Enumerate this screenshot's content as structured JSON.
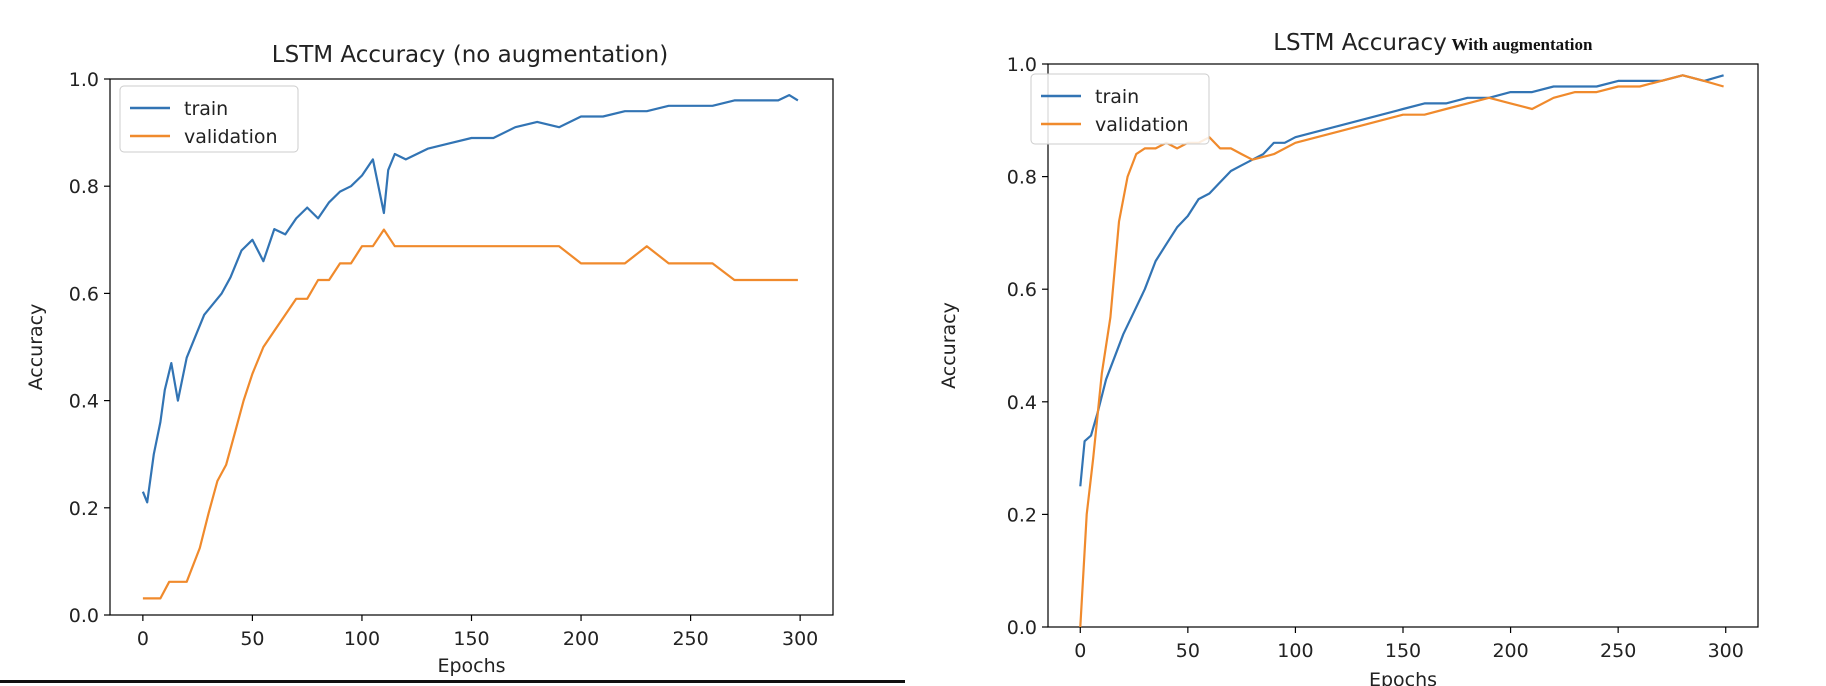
{
  "chart_data": [
    {
      "type": "line",
      "title": "LSTM Accuracy (no augmentation)",
      "xlabel": "Epochs",
      "ylabel": "Accuracy",
      "xlim": [
        -15,
        315
      ],
      "ylim": [
        0.0,
        1.0
      ],
      "xticks": [
        0,
        50,
        100,
        150,
        200,
        250,
        300
      ],
      "yticks": [
        0.0,
        0.2,
        0.4,
        0.6,
        0.8,
        1.0
      ],
      "grid": false,
      "legend_position": "upper-left",
      "series": [
        {
          "name": "train",
          "color": "#3274b4",
          "x": [
            0,
            2,
            5,
            8,
            10,
            13,
            16,
            20,
            24,
            28,
            32,
            36,
            40,
            45,
            50,
            55,
            60,
            65,
            70,
            75,
            80,
            85,
            90,
            95,
            100,
            105,
            110,
            112,
            115,
            120,
            130,
            140,
            150,
            160,
            170,
            180,
            190,
            200,
            210,
            220,
            230,
            240,
            250,
            260,
            270,
            280,
            290,
            295,
            299
          ],
          "y": [
            0.23,
            0.21,
            0.3,
            0.36,
            0.42,
            0.47,
            0.4,
            0.48,
            0.52,
            0.56,
            0.58,
            0.6,
            0.63,
            0.68,
            0.7,
            0.66,
            0.72,
            0.71,
            0.74,
            0.76,
            0.74,
            0.77,
            0.79,
            0.8,
            0.82,
            0.85,
            0.75,
            0.83,
            0.86,
            0.85,
            0.87,
            0.88,
            0.89,
            0.89,
            0.91,
            0.92,
            0.91,
            0.93,
            0.93,
            0.94,
            0.94,
            0.95,
            0.95,
            0.95,
            0.96,
            0.96,
            0.96,
            0.97,
            0.96
          ]
        },
        {
          "name": "validation",
          "color": "#f08a2c",
          "x": [
            0,
            8,
            12,
            20,
            26,
            30,
            34,
            38,
            42,
            46,
            50,
            55,
            60,
            65,
            70,
            75,
            80,
            85,
            90,
            95,
            100,
            105,
            110,
            115,
            120,
            130,
            140,
            150,
            155,
            160,
            170,
            180,
            190,
            200,
            210,
            220,
            230,
            240,
            250,
            260,
            270,
            280,
            290,
            299
          ],
          "y": [
            0.031,
            0.031,
            0.062,
            0.062,
            0.125,
            0.19,
            0.25,
            0.28,
            0.34,
            0.4,
            0.45,
            0.5,
            0.53,
            0.56,
            0.59,
            0.59,
            0.625,
            0.625,
            0.656,
            0.656,
            0.688,
            0.688,
            0.719,
            0.688,
            0.688,
            0.688,
            0.688,
            0.688,
            0.688,
            0.688,
            0.688,
            0.688,
            0.688,
            0.656,
            0.656,
            0.656,
            0.688,
            0.656,
            0.656,
            0.656,
            0.625,
            0.625,
            0.625,
            0.625
          ]
        }
      ]
    },
    {
      "type": "line",
      "title": "LSTM Accuracy",
      "subtitle": "With augmentation",
      "xlabel": "Epochs",
      "ylabel": "Accuracy",
      "xlim": [
        -15,
        315
      ],
      "ylim": [
        0.0,
        1.0
      ],
      "xticks": [
        0,
        50,
        100,
        150,
        200,
        250,
        300
      ],
      "yticks": [
        0.0,
        0.2,
        0.4,
        0.6,
        0.8,
        1.0
      ],
      "grid": false,
      "legend_position": "upper-left",
      "series": [
        {
          "name": "train",
          "color": "#3274b4",
          "x": [
            0,
            2,
            5,
            8,
            12,
            16,
            20,
            25,
            30,
            35,
            40,
            45,
            50,
            55,
            60,
            65,
            70,
            75,
            80,
            85,
            90,
            95,
            100,
            110,
            120,
            130,
            140,
            150,
            160,
            170,
            180,
            190,
            200,
            210,
            220,
            230,
            240,
            250,
            260,
            270,
            280,
            290,
            299
          ],
          "y": [
            0.25,
            0.33,
            0.34,
            0.38,
            0.44,
            0.48,
            0.52,
            0.56,
            0.6,
            0.65,
            0.68,
            0.71,
            0.73,
            0.76,
            0.77,
            0.79,
            0.81,
            0.82,
            0.83,
            0.84,
            0.86,
            0.86,
            0.87,
            0.88,
            0.89,
            0.9,
            0.91,
            0.92,
            0.93,
            0.93,
            0.94,
            0.94,
            0.95,
            0.95,
            0.96,
            0.96,
            0.96,
            0.97,
            0.97,
            0.97,
            0.98,
            0.97,
            0.98
          ]
        },
        {
          "name": "validation",
          "color": "#f08a2c",
          "x": [
            0,
            3,
            6,
            10,
            14,
            18,
            22,
            26,
            30,
            35,
            40,
            45,
            50,
            55,
            60,
            65,
            70,
            75,
            80,
            90,
            100,
            110,
            120,
            130,
            140,
            150,
            160,
            170,
            180,
            190,
            200,
            210,
            220,
            230,
            240,
            250,
            260,
            270,
            280,
            290,
            299
          ],
          "y": [
            0.0,
            0.2,
            0.3,
            0.45,
            0.55,
            0.72,
            0.8,
            0.84,
            0.85,
            0.85,
            0.86,
            0.85,
            0.86,
            0.86,
            0.87,
            0.85,
            0.85,
            0.84,
            0.83,
            0.84,
            0.86,
            0.87,
            0.88,
            0.89,
            0.9,
            0.91,
            0.91,
            0.92,
            0.93,
            0.94,
            0.93,
            0.92,
            0.94,
            0.95,
            0.95,
            0.96,
            0.96,
            0.97,
            0.98,
            0.97,
            0.96
          ]
        }
      ]
    }
  ]
}
